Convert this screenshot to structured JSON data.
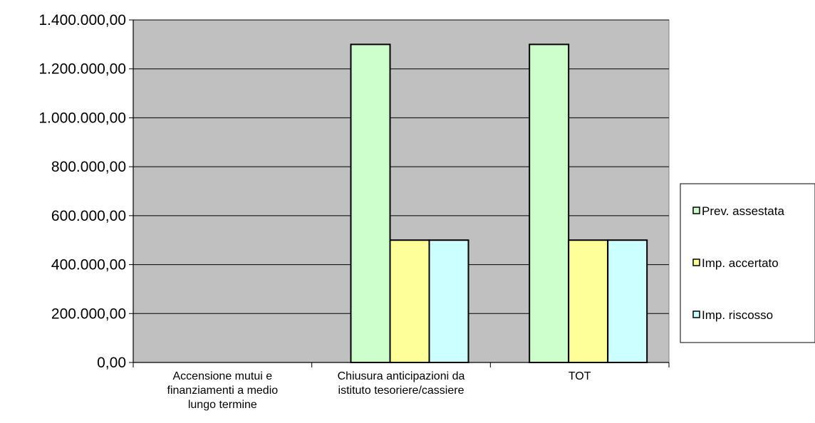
{
  "chart_data": {
    "type": "bar",
    "title": "",
    "xlabel": "",
    "ylabel": "",
    "categories": [
      [
        "Accensione mutui e",
        "finanziamenti a medio",
        "lungo termine"
      ],
      [
        "Chiusura anticipazioni da",
        "istituto tesoriere/cassiere"
      ],
      [
        "TOT"
      ]
    ],
    "series": [
      {
        "name": "Prev. assestata",
        "color": "#ccffcc",
        "values": [
          0,
          1300000,
          1300000
        ]
      },
      {
        "name": "Imp. accertato",
        "color": "#ffff99",
        "values": [
          0,
          500000,
          500000
        ]
      },
      {
        "name": "Imp. riscosso",
        "color": "#ccffff",
        "values": [
          0,
          500000,
          500000
        ]
      }
    ],
    "ylim": [
      0,
      1400000
    ],
    "y_ticks": [
      "0,00",
      "200.000,00",
      "400.000,00",
      "600.000,00",
      "800.000,00",
      "1.000.000,00",
      "1.200.000,00",
      "1.400.000,00"
    ],
    "grid": true,
    "plot_background": "#c0c0c0",
    "legend_position": "right"
  }
}
